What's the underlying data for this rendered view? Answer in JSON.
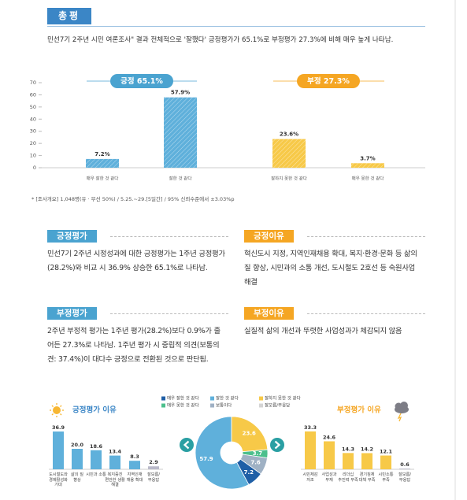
{
  "header": {
    "title": "총평"
  },
  "summary": "민선7기 2주년 시민 여론조사\" 결과 전체적으로 '잘했다' 긍정평가가 65.1%로 부정평가 27.3%에 비해 매우 높게 나타남.",
  "chart_data": [
    {
      "type": "bar",
      "categories": [
        "매우 잘한 것 같다",
        "잘한 것 같다",
        "잘하지 못한 것 같다",
        "매우 못한 것 같다"
      ],
      "values": [
        7.2,
        57.9,
        23.6,
        3.7
      ],
      "value_labels": [
        "7.2%",
        "57.9%",
        "23.6%",
        "3.7%"
      ],
      "colors": [
        "#5fb0db",
        "#5fb0db",
        "#f7c948",
        "#f7c948"
      ],
      "ylim": [
        0,
        70
      ],
      "yticks": [
        0,
        10,
        20,
        30,
        40,
        50,
        60,
        70
      ],
      "annotations": [
        {
          "text": "긍정 65.1%",
          "color": "#4aa3d0"
        },
        {
          "text": "부정 27.3%",
          "color": "#f5a623"
        }
      ],
      "note": "* [조사개요] 1,048명(유 · 무선 50%) / 5.25.~29.[5일간] / 95% 신뢰수준에서 ±3.03%p"
    },
    {
      "type": "bar",
      "title": "긍정평가 이유",
      "categories": [
        "도시철도와 경제활성화 기대",
        "삶의 질 향상",
        "시민과 소통",
        "복지증진 편안한 생활 해결",
        "지역인재 채용 확대",
        "잘모름/무응답"
      ],
      "values": [
        36.9,
        20.0,
        18.6,
        13.4,
        8.3,
        2.9
      ],
      "value_labels": [
        "36.9",
        "20.0",
        "18.6",
        "13.4",
        "8.3",
        "2.9"
      ],
      "colors": [
        "#5fb0db",
        "#5fb0db",
        "#5fb0db",
        "#5fb0db",
        "#5fb0db",
        "#b9b9c9"
      ],
      "ylim": [
        0,
        40
      ],
      "title_color": "#3b86c6"
    },
    {
      "type": "pie",
      "series": [
        {
          "name": "매우 잘한 것 같다",
          "color": "#1f5fa6",
          "value": 7.2
        },
        {
          "name": "잘한 것 같다",
          "color": "#5fb0db",
          "value": 57.9
        },
        {
          "name": "잘하지 못한 것 같다",
          "color": "#f7c948",
          "value": 23.6
        },
        {
          "name": "매우 못한 것 같다",
          "color": "#4cbf8c",
          "value": 3.7
        },
        {
          "name": "보통이다",
          "color": "#9fb1c4",
          "value": 7.6
        },
        {
          "name": "잘모름/무응답",
          "color": "#d4d4d4",
          "value": null
        }
      ]
    },
    {
      "type": "bar",
      "title": "부정평가 이유",
      "categories": [
        "시민체감 저조",
        "사업성과 부재",
        "리더십 추진력 부족",
        "경기침체 대책 부족",
        "시민소통 부족",
        "잘모름/무응답"
      ],
      "values": [
        33.3,
        24.6,
        14.3,
        14.2,
        12.1,
        0.6
      ],
      "colors": [
        "#f7c948",
        "#f7c948",
        "#f7c948",
        "#f7c948",
        "#f7c948",
        "#b9b9c9"
      ],
      "ylim": [
        0,
        36
      ],
      "title_color": "#f5a623"
    }
  ],
  "sections": [
    {
      "title": "긍정평가",
      "color": "#4aa3d0",
      "text": "민선7기 2주년 시정성과에 대한 긍정평가는 1주년 긍정평가(28.2%)와 비교 시 36.9% 상승한 65.1%로 나타남."
    },
    {
      "title": "긍정이유",
      "color": "#f5a623",
      "text": "혁신도시 지정, 지역인재채용 확대, 복지·환경·문화 등 삶의 질 향상, 시민과의 소통 개선, 도시철도 2호선 등 숙원사업 해결"
    },
    {
      "title": "부정평가",
      "color": "#4aa3d0",
      "text": "2주년 부정적 평가는 1주년 평가(28.2%)보다 0.9%가 줄어든 27.3%로 나타남. 1주년 평가 시 중립적 의견(보통의견: 37.4%)이 대다수 긍정으로 전환된 것으로 판단됨."
    },
    {
      "title": "부정이유",
      "color": "#f5a623",
      "text": "실질적 삶의 개선과 뚜렷한 사업성과가 체감되지 않음"
    }
  ]
}
